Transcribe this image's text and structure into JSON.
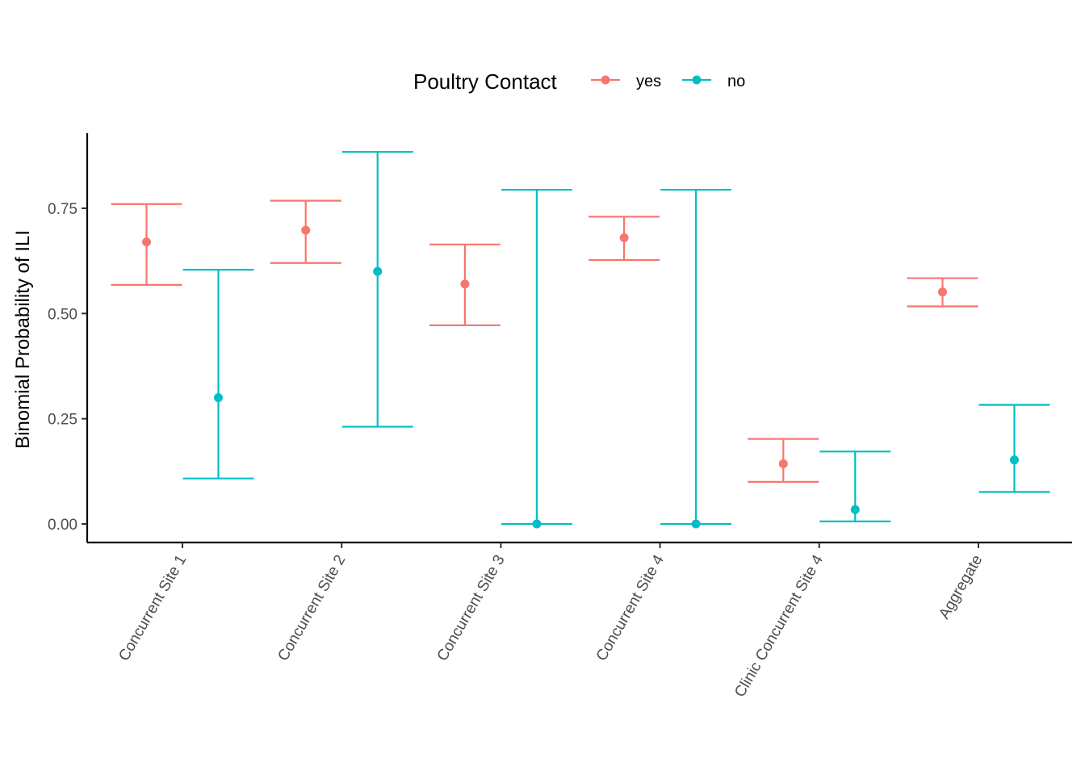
{
  "chart_data": {
    "type": "scatter",
    "subtype": "errorbar",
    "title": "",
    "xlabel": "",
    "ylabel": "Binomial Probability of ILI",
    "ylim": [
      -0.035,
      0.93
    ],
    "y_ticks": [
      0.0,
      0.25,
      0.5,
      0.75
    ],
    "y_tick_labels": [
      "0.00",
      "0.25",
      "0.50",
      "0.75"
    ],
    "categories": [
      "Concurrent Site 1",
      "Concurrent Site 2",
      "Concurrent Site 3",
      "Concurrent Site 4",
      "Clinic Concurrent Site 4",
      "Aggregate"
    ],
    "grid": false,
    "legend": {
      "title": "Poultry Contact",
      "position": "top"
    },
    "series": [
      {
        "name": "yes",
        "color": "#F8766D",
        "values": [
          0.67,
          0.698,
          0.57,
          0.68,
          0.143,
          0.551
        ],
        "lower": [
          0.568,
          0.62,
          0.472,
          0.627,
          0.1,
          0.517
        ],
        "upper": [
          0.76,
          0.768,
          0.664,
          0.73,
          0.202,
          0.584
        ]
      },
      {
        "name": "no",
        "color": "#00BFC4",
        "values": [
          0.3,
          0.6,
          0.0,
          0.0,
          0.034,
          0.152
        ],
        "lower": [
          0.108,
          0.231,
          0.0,
          0.0,
          0.006,
          0.076
        ],
        "upper": [
          0.604,
          0.884,
          0.794,
          0.794,
          0.172,
          0.283
        ]
      }
    ]
  }
}
